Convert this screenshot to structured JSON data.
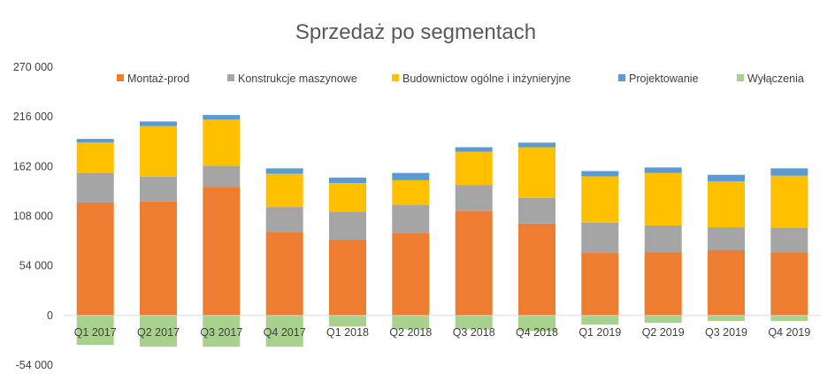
{
  "chart_data": {
    "type": "bar",
    "stacked": true,
    "title": "Sprzedaż po segmentach",
    "xlabel": "",
    "ylabel": "",
    "ylim": [
      -54000,
      270000
    ],
    "yticks": [
      -54000,
      0,
      54000,
      108000,
      162000,
      216000,
      270000
    ],
    "ytick_labels": [
      "-54 000",
      "0",
      "54 000",
      "108 000",
      "162 000",
      "216 000",
      "270 000"
    ],
    "grid": false,
    "legend_position": "top",
    "categories": [
      "Q1 2017",
      "Q2 2017",
      "Q3 2017",
      "Q4 2017",
      "Q1 2018",
      "Q2 2018",
      "Q3 2018",
      "Q4 2018",
      "Q1 2019",
      "Q2 2019",
      "Q3 2019",
      "Q4 2019"
    ],
    "series": [
      {
        "name": "Montaż-prod",
        "color": "#ED7D31",
        "values": [
          123000,
          124000,
          140000,
          91000,
          82000,
          90000,
          114000,
          100000,
          68000,
          69000,
          71000,
          69000
        ]
      },
      {
        "name": "Konstrukcje maszynowe",
        "color": "#A5A5A5",
        "values": [
          32000,
          27000,
          23000,
          27000,
          31000,
          30000,
          28000,
          28000,
          33000,
          29000,
          25000,
          26000
        ]
      },
      {
        "name": "Budownictow ogólne i inżynieryjne",
        "color": "#FFC000",
        "values": [
          33000,
          55000,
          50000,
          36000,
          31000,
          27000,
          36000,
          55000,
          50000,
          57000,
          50000,
          57000
        ]
      },
      {
        "name": "Projektowanie",
        "color": "#5B9BD5",
        "values": [
          4000,
          5000,
          5000,
          6000,
          6000,
          8000,
          5000,
          5000,
          6000,
          6000,
          7000,
          8000
        ]
      },
      {
        "name": "Wyłączenia",
        "color": "#A9D18E",
        "values": [
          -32000,
          -34000,
          -34000,
          -34000,
          -12000,
          -15000,
          -15000,
          -17000,
          -10000,
          -8000,
          -6000,
          -6000
        ]
      }
    ]
  }
}
